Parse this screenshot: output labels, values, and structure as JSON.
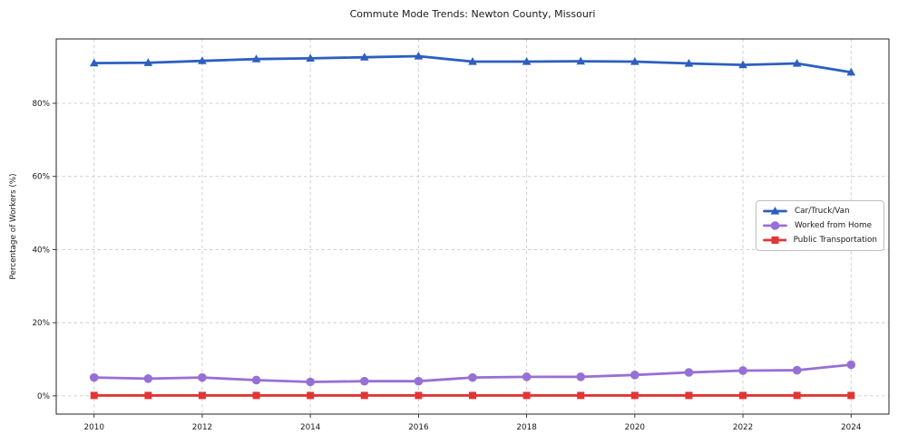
{
  "figure": {
    "background": "#ffffff"
  },
  "chart_data": {
    "type": "line",
    "title": "Commute Mode Trends: Newton County, Missouri",
    "xlabel": "",
    "ylabel": "Percentage of Workers (%)",
    "x": [
      2010,
      2011,
      2012,
      2013,
      2014,
      2015,
      2016,
      2017,
      2018,
      2019,
      2020,
      2021,
      2022,
      2023,
      2024
    ],
    "xticks": [
      2010,
      2012,
      2014,
      2016,
      2018,
      2020,
      2022,
      2024
    ],
    "yticks": [
      0,
      20,
      40,
      60,
      80
    ],
    "ytick_labels": [
      "0%",
      "20%",
      "40%",
      "60%",
      "80%"
    ],
    "xlim": [
      2009.3,
      2024.7
    ],
    "ylim": [
      -5.0,
      97.6
    ],
    "grid": true,
    "grid_style": "dashed",
    "legend_position": "center-right",
    "series": [
      {
        "name": "Car/Truck/Van",
        "color": "#2c5fc0",
        "marker": "triangle-up",
        "values": [
          91.0,
          91.1,
          91.6,
          92.1,
          92.3,
          92.6,
          92.9,
          91.4,
          91.4,
          91.5,
          91.4,
          90.9,
          90.5,
          90.9,
          88.5
        ]
      },
      {
        "name": "Worked from Home",
        "color": "#9770d6",
        "marker": "circle",
        "values": [
          5.0,
          4.7,
          5.0,
          4.3,
          3.8,
          4.0,
          4.0,
          5.0,
          5.2,
          5.2,
          5.7,
          6.4,
          6.9,
          7.0,
          8.5
        ]
      },
      {
        "name": "Public Transportation",
        "color": "#e23535",
        "marker": "square",
        "values": [
          0.1,
          0.1,
          0.1,
          0.1,
          0.1,
          0.1,
          0.1,
          0.1,
          0.1,
          0.1,
          0.1,
          0.1,
          0.1,
          0.1,
          0.1
        ]
      }
    ]
  },
  "colors": {
    "grid": "#cccccc",
    "spine": "#262626",
    "tick": "#262626",
    "text": "#1a1a1a",
    "legend_border": "#bfbfbf"
  }
}
